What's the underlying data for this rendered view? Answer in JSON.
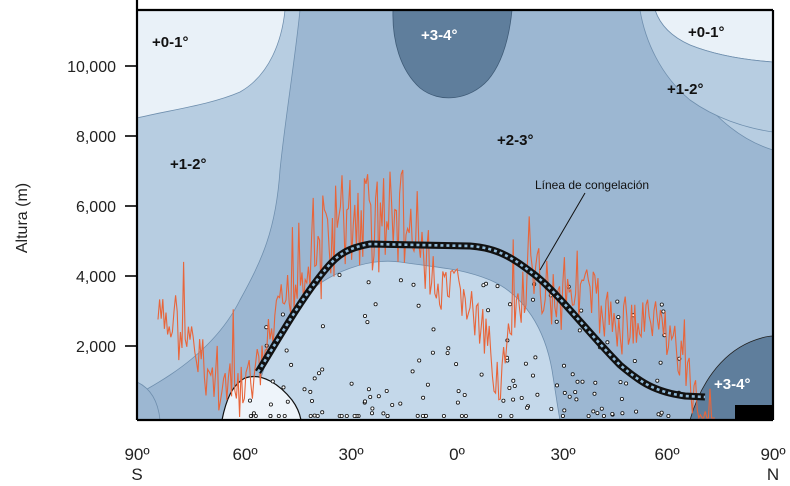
{
  "axis": {
    "ylabel": "Altura (m)",
    "yticks": [
      "2,000",
      "4,000",
      "6,000",
      "8,000",
      "10,000"
    ],
    "xticks": [
      "90º",
      "60º",
      "30º",
      "0º",
      "30º",
      "60º",
      "90º"
    ],
    "x_hemispheres": {
      "south": "S",
      "north": "N"
    }
  },
  "zones": {
    "top_left": "+0-1°",
    "top_center": "+3-4°",
    "top_right": "+0-1°",
    "upper_right": "+1-2°",
    "center": "+2-3°",
    "left": "+1-2°",
    "bottom_right": "+3-4°"
  },
  "annotation": {
    "freezing_line": "Línea de congelación"
  },
  "colors": {
    "zone_0_1": "#e9f1f8",
    "zone_1_2": "#b7cde1",
    "zone_2_3": "#9cb7d2",
    "zone_3_4": "#5f7e9c",
    "zone_inner": "#cfe0ee",
    "glacier_trace": "#e8653a",
    "freezing_line": "#111111",
    "freezing_dots": "#8fb9d8"
  }
}
